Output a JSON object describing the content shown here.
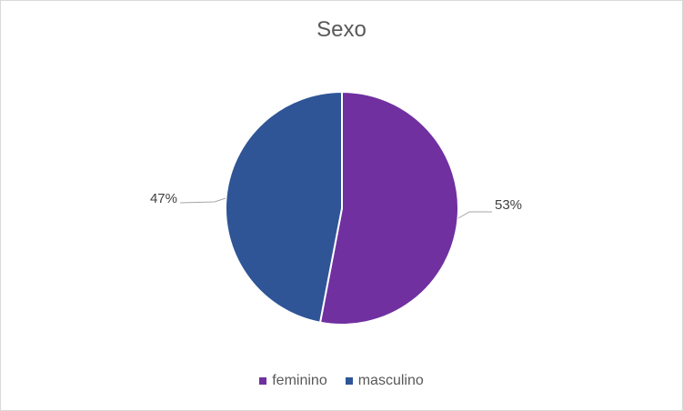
{
  "chart_data": {
    "type": "pie",
    "title": "Sexo",
    "categories": [
      "feminino",
      "masculino"
    ],
    "values": [
      53,
      47
    ],
    "labels": [
      "53%",
      "47%"
    ],
    "colors": [
      "#7030a0",
      "#2f5597"
    ],
    "legend_position": "bottom"
  }
}
